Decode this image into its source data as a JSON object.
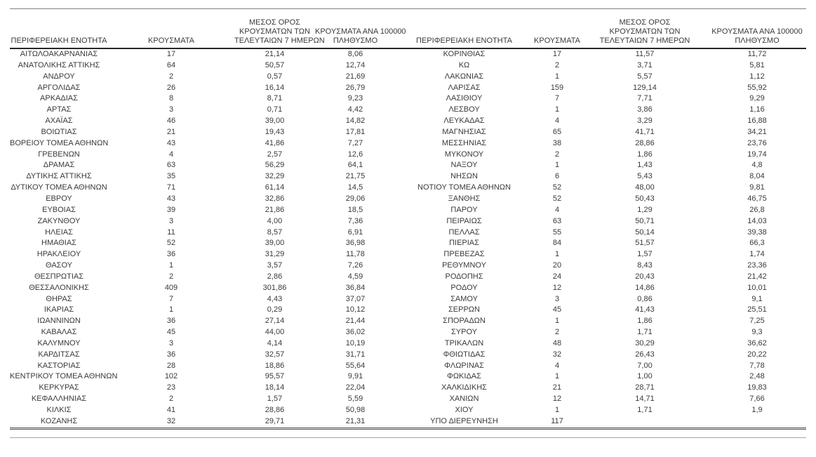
{
  "table": {
    "columns": {
      "region": "ΠΕΡΙΦΕΡΕΙΑΚΗ ΕΝΟΤΗΤΑ",
      "cases": "ΚΡΟΥΣΜΑΤΑ",
      "avg7": "ΜΕΣΟΣ ΟΡΟΣ\nΚΡΟΥΣΜΑΤΩΝ ΤΩΝ\nΤΕΛΕΥΤΑΙΩΝ 7 ΗΜΕΡΩΝ",
      "per100k": "ΚΡΟΥΣΜΑΤΑ ΑΝΑ 100000\nΠΛΗΘΥΣΜΟ"
    },
    "left_rows": [
      [
        "ΑΙΤΩΛΟΑΚΑΡΝΑΝΙΑΣ",
        "17",
        "21,14",
        "8,06"
      ],
      [
        "ΑΝΑΤΟΛΙΚΗΣ ΑΤΤΙΚΗΣ",
        "64",
        "50,57",
        "12,74"
      ],
      [
        "ΑΝΔΡΟΥ",
        "2",
        "0,57",
        "21,69"
      ],
      [
        "ΑΡΓΟΛΙΔΑΣ",
        "26",
        "16,14",
        "26,79"
      ],
      [
        "ΑΡΚΑΔΙΑΣ",
        "8",
        "8,71",
        "9,23"
      ],
      [
        "ΑΡΤΑΣ",
        "3",
        "0,71",
        "4,42"
      ],
      [
        "ΑΧΑΪΑΣ",
        "46",
        "39,00",
        "14,82"
      ],
      [
        "ΒΟΙΩΤΙΑΣ",
        "21",
        "19,43",
        "17,81"
      ],
      [
        "ΒΟΡΕΙΟΥ ΤΟΜΕΑ ΑΘΗΝΩΝ",
        "43",
        "41,86",
        "7,27"
      ],
      [
        "ΓΡΕΒΕΝΩΝ",
        "4",
        "2,57",
        "12,6"
      ],
      [
        "ΔΡΑΜΑΣ",
        "63",
        "56,29",
        "64,1"
      ],
      [
        "ΔΥΤΙΚΗΣ ΑΤΤΙΚΗΣ",
        "35",
        "32,29",
        "21,75"
      ],
      [
        "ΔΥΤΙΚΟΥ ΤΟΜΕΑ ΑΘΗΝΩΝ",
        "71",
        "61,14",
        "14,5"
      ],
      [
        "ΕΒΡΟΥ",
        "43",
        "32,86",
        "29,06"
      ],
      [
        "ΕΥΒΟΙΑΣ",
        "39",
        "21,86",
        "18,5"
      ],
      [
        "ΖΑΚΥΝΘΟΥ",
        "3",
        "4,00",
        "7,36"
      ],
      [
        "ΗΛΕΙΑΣ",
        "11",
        "8,57",
        "6,91"
      ],
      [
        "ΗΜΑΘΙΑΣ",
        "52",
        "39,00",
        "36,98"
      ],
      [
        "ΗΡΑΚΛΕΙΟΥ",
        "36",
        "31,29",
        "11,78"
      ],
      [
        "ΘΑΣΟΥ",
        "1",
        "3,57",
        "7,26"
      ],
      [
        "ΘΕΣΠΡΩΤΙΑΣ",
        "2",
        "2,86",
        "4,59"
      ],
      [
        "ΘΕΣΣΑΛΟΝΙΚΗΣ",
        "409",
        "301,86",
        "36,84"
      ],
      [
        "ΘΗΡΑΣ",
        "7",
        "4,43",
        "37,07"
      ],
      [
        "ΙΚΑΡΙΑΣ",
        "1",
        "0,29",
        "10,12"
      ],
      [
        "ΙΩΑΝΝΙΝΩΝ",
        "36",
        "27,14",
        "21,44"
      ],
      [
        "ΚΑΒΑΛΑΣ",
        "45",
        "44,00",
        "36,02"
      ],
      [
        "ΚΑΛΥΜΝΟΥ",
        "3",
        "4,14",
        "10,19"
      ],
      [
        "ΚΑΡΔΙΤΣΑΣ",
        "36",
        "32,57",
        "31,71"
      ],
      [
        "ΚΑΣΤΟΡΙΑΣ",
        "28",
        "18,86",
        "55,64"
      ],
      [
        "ΚΕΝΤΡΙΚΟΥ ΤΟΜΕΑ ΑΘΗΝΩΝ",
        "102",
        "95,57",
        "9,91"
      ],
      [
        "ΚΕΡΚΥΡΑΣ",
        "23",
        "18,14",
        "22,04"
      ],
      [
        "ΚΕΦΑΛΛΗΝΙΑΣ",
        "2",
        "1,57",
        "5,59"
      ],
      [
        "ΚΙΛΚΙΣ",
        "41",
        "28,86",
        "50,98"
      ],
      [
        "ΚΟΖΑΝΗΣ",
        "32",
        "29,71",
        "21,31"
      ]
    ],
    "right_rows": [
      [
        "ΚΟΡΙΝΘΙΑΣ",
        "17",
        "11,57",
        "11,72"
      ],
      [
        "ΚΩ",
        "2",
        "3,71",
        "5,81"
      ],
      [
        "ΛΑΚΩΝΙΑΣ",
        "1",
        "5,57",
        "1,12"
      ],
      [
        "ΛΑΡΙΣΑΣ",
        "159",
        "129,14",
        "55,92"
      ],
      [
        "ΛΑΣΙΘΙΟΥ",
        "7",
        "7,71",
        "9,29"
      ],
      [
        "ΛΕΣΒΟΥ",
        "1",
        "3,86",
        "1,16"
      ],
      [
        "ΛΕΥΚΑΔΑΣ",
        "4",
        "3,29",
        "16,88"
      ],
      [
        "ΜΑΓΝΗΣΙΑΣ",
        "65",
        "41,71",
        "34,21"
      ],
      [
        "ΜΕΣΣΗΝΙΑΣ",
        "38",
        "28,86",
        "23,76"
      ],
      [
        "ΜΥΚΟΝΟΥ",
        "2",
        "1,86",
        "19,74"
      ],
      [
        "ΝΑΞΟΥ",
        "1",
        "1,43",
        "4,8"
      ],
      [
        "ΝΗΣΩΝ",
        "6",
        "5,43",
        "8,04"
      ],
      [
        "ΝΟΤΙΟΥ ΤΟΜΕΑ ΑΘΗΝΩΝ",
        "52",
        "48,00",
        "9,81"
      ],
      [
        "ΞΑΝΘΗΣ",
        "52",
        "50,43",
        "46,75"
      ],
      [
        "ΠΑΡΟΥ",
        "4",
        "1,29",
        "26,8"
      ],
      [
        "ΠΕΙΡΑΙΩΣ",
        "63",
        "50,71",
        "14,03"
      ],
      [
        "ΠΕΛΛΑΣ",
        "55",
        "50,14",
        "39,38"
      ],
      [
        "ΠΙΕΡΙΑΣ",
        "84",
        "51,57",
        "66,3"
      ],
      [
        "ΠΡΕΒΕΖΑΣ",
        "1",
        "1,57",
        "1,74"
      ],
      [
        "ΡΕΘΥΜΝΟΥ",
        "20",
        "8,43",
        "23,36"
      ],
      [
        "ΡΟΔΟΠΗΣ",
        "24",
        "20,43",
        "21,42"
      ],
      [
        "ΡΟΔΟΥ",
        "12",
        "14,86",
        "10,01"
      ],
      [
        "ΣΑΜΟΥ",
        "3",
        "0,86",
        "9,1"
      ],
      [
        "ΣΕΡΡΩΝ",
        "45",
        "41,43",
        "25,51"
      ],
      [
        "ΣΠΟΡΑΔΩΝ",
        "1",
        "1,86",
        "7,25"
      ],
      [
        "ΣΥΡΟΥ",
        "2",
        "1,71",
        "9,3"
      ],
      [
        "ΤΡΙΚΑΛΩΝ",
        "48",
        "30,29",
        "36,62"
      ],
      [
        "ΦΘΙΩΤΙΔΑΣ",
        "32",
        "26,43",
        "20,22"
      ],
      [
        "ΦΛΩΡΙΝΑΣ",
        "4",
        "7,00",
        "7,78"
      ],
      [
        "ΦΩΚΙΔΑΣ",
        "1",
        "1,00",
        "2,48"
      ],
      [
        "ΧΑΛΚΙΔΙΚΗΣ",
        "21",
        "28,71",
        "19,83"
      ],
      [
        "ΧΑΝΙΩΝ",
        "12",
        "14,71",
        "7,66"
      ],
      [
        "ΧΙΟΥ",
        "1",
        "1,71",
        "1,9"
      ],
      [
        "ΥΠΟ ΔΙΕΡΕΥΝΗΣΗ",
        "117",
        "",
        ""
      ]
    ]
  }
}
